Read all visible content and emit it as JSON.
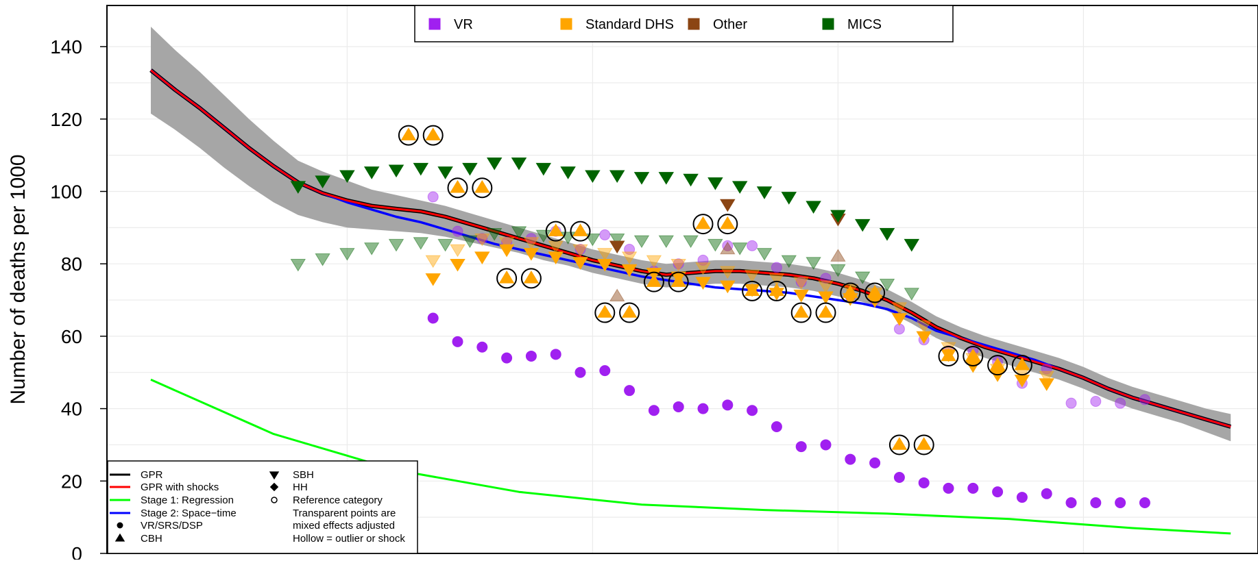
{
  "chart_data": {
    "type": "scatter",
    "title": "",
    "xlabel": "",
    "ylabel": "Number of deaths per 1000",
    "x_range": [
      1968,
      2020
    ],
    "ylim": [
      0,
      150
    ],
    "y_ticks": [
      0,
      20,
      40,
      60,
      80,
      100,
      120,
      140
    ],
    "grid": true,
    "colors": {
      "VR": "#a020f0",
      "Standard DHS": "#ffa500",
      "Other": "#8b4513",
      "MICS": "#006400",
      "GPR": "#000000",
      "GPR with shocks": "#ff0000",
      "Stage 1: Regression": "#00ff00",
      "Stage 2: Space-time": "#0000ff",
      "uncertainty": "#a6a6a6"
    },
    "source_legend": {
      "placement": "top-center",
      "entries": [
        "VR",
        "Standard DHS",
        "Other",
        "MICS"
      ]
    },
    "key_legend": {
      "placement": "bottom-left",
      "lines": [
        "GPR",
        "GPR with shocks",
        "Stage 1: Regression",
        "Stage 2: Space−time"
      ],
      "symbols": [
        "VR/SRS/DSP",
        "CBH",
        "SBH",
        "HH",
        "Reference category"
      ],
      "notes": [
        "Transparent points are",
        "mixed effects adjusted",
        "Hollow = outlier or shock"
      ]
    },
    "lines": {
      "gpr_x": [
        1970,
        1971,
        1972,
        1973,
        1974,
        1975,
        1976,
        1977,
        1978,
        1979,
        1980,
        1981,
        1982,
        1983,
        1984,
        1985,
        1986,
        1987,
        1988,
        1989,
        1990,
        1991,
        1992,
        1993,
        1994,
        1995,
        1996,
        1997,
        1998,
        1999,
        2000,
        2001,
        2002,
        2003,
        2004,
        2005,
        2006,
        2007,
        2008,
        2009,
        2010,
        2011,
        2012,
        2013,
        2014
      ],
      "gpr_y": [
        133.5,
        128,
        123,
        117.5,
        112,
        107,
        102.5,
        99.5,
        97.5,
        96,
        95.2,
        94.5,
        93,
        91,
        89,
        87,
        85,
        83,
        81,
        79.5,
        78,
        77,
        77.5,
        78,
        78,
        77.5,
        77,
        76,
        74.5,
        72.5,
        70,
        66.5,
        62.5,
        59.5,
        57,
        55,
        53,
        51,
        48.5,
        45.5,
        43,
        41,
        39,
        37,
        35
      ],
      "gpr_upper": [
        145.5,
        139,
        133,
        126.5,
        120,
        114,
        108.5,
        105.5,
        103,
        100.5,
        99,
        97.5,
        96,
        94,
        92,
        90,
        88,
        86,
        84,
        82.5,
        81,
        80,
        80.5,
        81,
        81,
        80.5,
        80,
        79,
        77.5,
        75.5,
        73,
        69.5,
        65.5,
        62.5,
        60,
        58,
        56,
        54,
        51.5,
        48.5,
        46,
        44,
        42,
        40,
        38.5
      ],
      "gpr_lower": [
        121.5,
        117,
        112,
        106.5,
        101.5,
        97,
        93.5,
        91.5,
        90,
        89.5,
        89,
        88.5,
        87.5,
        86,
        84.5,
        83,
        81,
        79.5,
        77.5,
        76,
        74.5,
        73.5,
        74,
        74.5,
        74.5,
        74,
        73.5,
        72.5,
        71,
        69.5,
        67,
        63.5,
        59.5,
        56.5,
        54,
        52,
        50,
        48,
        45.5,
        42.5,
        40,
        38,
        36,
        33.5,
        31
      ],
      "stage2_x": [
        1970,
        1971,
        1972,
        1973,
        1974,
        1975,
        1976,
        1977,
        1978,
        1979,
        1980,
        1981,
        1982,
        1983,
        1984,
        1985,
        1986,
        1987,
        1988,
        1989,
        1990,
        1991,
        1992,
        1993,
        1994,
        1995,
        1996,
        1997,
        1998,
        1999,
        2000,
        2001,
        2002,
        2003,
        2004,
        2005,
        2006,
        2007,
        2008,
        2009,
        2010,
        2011,
        2012,
        2013,
        2014
      ],
      "stage2_y": [
        133.5,
        128,
        123,
        117.5,
        112,
        107,
        102.5,
        99.5,
        97,
        95,
        93,
        91.5,
        89.5,
        87.5,
        85.5,
        84,
        82.5,
        81,
        79.5,
        78,
        76.5,
        75.5,
        74.5,
        73.5,
        73,
        72.5,
        72,
        71,
        70,
        69,
        67.5,
        65,
        61.5,
        59.5,
        57.5,
        55.5,
        53.5,
        51,
        48.5,
        45.5,
        43,
        41,
        39,
        37,
        35
      ],
      "stage1_x": [
        1970,
        1975,
        1980,
        1985,
        1990,
        1995,
        2000,
        2005,
        2010,
        2014
      ],
      "stage1_y": [
        48,
        33,
        23,
        17,
        13.5,
        12,
        11,
        9.5,
        7,
        5.5
      ]
    },
    "series": [
      {
        "name": "VR",
        "marker": "circle",
        "alpha": 1,
        "points": [
          [
            1981.5,
            65
          ],
          [
            1982.5,
            58.5
          ],
          [
            1983.5,
            57
          ],
          [
            1984.5,
            54
          ],
          [
            1985.5,
            54.5
          ],
          [
            1986.5,
            55
          ],
          [
            1987.5,
            50
          ],
          [
            1988.5,
            50.5
          ],
          [
            1989.5,
            45
          ],
          [
            1990.5,
            39.5
          ],
          [
            1991.5,
            40.5
          ],
          [
            1992.5,
            40
          ],
          [
            1993.5,
            41
          ],
          [
            1994.5,
            39.5
          ],
          [
            1995.5,
            35
          ],
          [
            1996.5,
            29.5
          ],
          [
            1997.5,
            30
          ],
          [
            1998.5,
            26
          ],
          [
            1999.5,
            25
          ],
          [
            2000.5,
            21
          ],
          [
            2001.5,
            19.5
          ],
          [
            2002.5,
            18
          ],
          [
            2003.5,
            18
          ],
          [
            2004.5,
            17
          ],
          [
            2005.5,
            15.5
          ],
          [
            2006.5,
            16.5
          ],
          [
            2007.5,
            14
          ],
          [
            2008.5,
            14
          ],
          [
            2009.5,
            14
          ],
          [
            2010.5,
            14
          ]
        ]
      },
      {
        "name": "VR",
        "marker": "circle",
        "alpha": 0.45,
        "points": [
          [
            1981.5,
            98.5
          ],
          [
            1982.5,
            89
          ],
          [
            1983.5,
            87
          ],
          [
            1984.5,
            86
          ],
          [
            1985.5,
            87
          ],
          [
            1986.5,
            89
          ],
          [
            1987.5,
            84
          ],
          [
            1988.5,
            88
          ],
          [
            1989.5,
            84
          ],
          [
            1990.5,
            78
          ],
          [
            1991.5,
            80
          ],
          [
            1992.5,
            81
          ],
          [
            1993.5,
            85
          ],
          [
            1994.5,
            85
          ],
          [
            1995.5,
            79
          ],
          [
            1996.5,
            75
          ],
          [
            1997.5,
            76
          ],
          [
            1998.5,
            71
          ],
          [
            1999.5,
            70
          ],
          [
            2000.5,
            62
          ],
          [
            2001.5,
            59
          ],
          [
            2002.5,
            56
          ],
          [
            2003.5,
            56
          ],
          [
            2004.5,
            53
          ],
          [
            2005.5,
            47
          ],
          [
            2006.5,
            51
          ],
          [
            2007.5,
            41.5
          ],
          [
            2008.5,
            42
          ],
          [
            2009.5,
            41.5
          ],
          [
            2010.5,
            42.5
          ]
        ]
      },
      {
        "name": "Standard DHS",
        "marker": "triangle-down",
        "alpha": 1,
        "points": [
          [
            1981.5,
            76
          ],
          [
            1982.5,
            80
          ],
          [
            1983.5,
            82
          ],
          [
            1984.5,
            84
          ],
          [
            1985.5,
            83
          ],
          [
            1986.5,
            82
          ],
          [
            1987.5,
            80.5
          ],
          [
            1988.5,
            80
          ],
          [
            1989.5,
            78.5
          ],
          [
            1990.5,
            77.5
          ],
          [
            1991.5,
            76.5
          ],
          [
            1992.5,
            75
          ],
          [
            1993.5,
            74
          ],
          [
            1994.5,
            73
          ],
          [
            1995.5,
            72
          ],
          [
            1996.5,
            71.5
          ],
          [
            1997.5,
            71
          ],
          [
            1998.5,
            70.5
          ],
          [
            1999.5,
            70
          ],
          [
            2000.5,
            65
          ],
          [
            2001.5,
            60
          ],
          [
            2002.5,
            55
          ],
          [
            2003.5,
            52
          ],
          [
            2004.5,
            49.5
          ],
          [
            2005.5,
            48
          ],
          [
            2006.5,
            47
          ]
        ]
      },
      {
        "name": "Standard DHS",
        "marker": "triangle-down",
        "alpha": 0.45,
        "points": [
          [
            1981.5,
            81
          ],
          [
            1982.5,
            84
          ],
          [
            1983.5,
            87
          ],
          [
            1984.5,
            86
          ],
          [
            1985.5,
            86
          ],
          [
            1986.5,
            85
          ],
          [
            1987.5,
            84
          ],
          [
            1988.5,
            83
          ],
          [
            1989.5,
            82
          ],
          [
            1990.5,
            81
          ],
          [
            1991.5,
            80
          ],
          [
            1992.5,
            79
          ],
          [
            1993.5,
            78
          ],
          [
            1994.5,
            77
          ],
          [
            1995.5,
            76
          ],
          [
            1996.5,
            75
          ],
          [
            1997.5,
            74
          ],
          [
            1998.5,
            73
          ],
          [
            1999.5,
            72
          ],
          [
            2000.5,
            68
          ],
          [
            2001.5,
            63
          ],
          [
            2002.5,
            57
          ],
          [
            2003.5,
            54
          ],
          [
            2004.5,
            51
          ],
          [
            2005.5,
            50
          ],
          [
            2006.5,
            49
          ]
        ]
      },
      {
        "name": "Standard DHS",
        "marker": "triangle-up",
        "alpha": 1,
        "circled": true,
        "points": [
          [
            1980.5,
            115.5
          ],
          [
            1981.5,
            115.5
          ],
          [
            1982.5,
            101
          ],
          [
            1983.5,
            101
          ],
          [
            1984.5,
            76
          ],
          [
            1985.5,
            76
          ],
          [
            1986.5,
            89
          ],
          [
            1987.5,
            89
          ],
          [
            1988.5,
            66.5
          ],
          [
            1989.5,
            66.5
          ],
          [
            1990.5,
            75
          ],
          [
            1991.5,
            75
          ],
          [
            1992.5,
            91
          ],
          [
            1993.5,
            91
          ],
          [
            1994.5,
            72.5
          ],
          [
            1995.5,
            72.5
          ],
          [
            1996.5,
            66.5
          ],
          [
            1997.5,
            66.5
          ],
          [
            1998.5,
            72
          ],
          [
            1999.5,
            72
          ],
          [
            2000.5,
            30
          ],
          [
            2001.5,
            30
          ],
          [
            2002.5,
            54.5
          ],
          [
            2003.5,
            54.5
          ],
          [
            2004.5,
            52
          ],
          [
            2005.5,
            52
          ]
        ]
      },
      {
        "name": "Other",
        "marker": "triangle-down",
        "alpha": 1,
        "points": [
          [
            1989,
            85
          ],
          [
            1993.5,
            96.5
          ],
          [
            1998,
            92.5
          ]
        ]
      },
      {
        "name": "Other",
        "marker": "triangle-up",
        "alpha": 0.45,
        "points": [
          [
            1989,
            71
          ],
          [
            1993.5,
            84
          ],
          [
            1998,
            82
          ]
        ]
      },
      {
        "name": "MICS",
        "marker": "triangle-down",
        "alpha": 1,
        "points": [
          [
            1976,
            101.5
          ],
          [
            1977,
            103
          ],
          [
            1978,
            104.5
          ],
          [
            1979,
            105.5
          ],
          [
            1980,
            106
          ],
          [
            1981,
            106.5
          ],
          [
            1982,
            105.5
          ],
          [
            1983,
            106.5
          ],
          [
            1984,
            108
          ],
          [
            1985,
            108
          ],
          [
            1986,
            106.5
          ],
          [
            1987,
            105.5
          ],
          [
            1988,
            104.5
          ],
          [
            1989,
            104.5
          ],
          [
            1990,
            104
          ],
          [
            1991,
            104
          ],
          [
            1992,
            103.5
          ],
          [
            1993,
            102.5
          ],
          [
            1994,
            101.5
          ],
          [
            1995,
            100
          ],
          [
            1996,
            98.5
          ],
          [
            1997,
            96
          ],
          [
            1998,
            93.5
          ],
          [
            1999,
            91
          ],
          [
            2000,
            88.5
          ],
          [
            2001,
            85.5
          ]
        ]
      },
      {
        "name": "MICS",
        "marker": "triangle-down",
        "alpha": 0.45,
        "points": [
          [
            1976,
            80
          ],
          [
            1977,
            81.5
          ],
          [
            1978,
            83
          ],
          [
            1979,
            84.5
          ],
          [
            1980,
            85.5
          ],
          [
            1981,
            86
          ],
          [
            1982,
            85.5
          ],
          [
            1983,
            86.5
          ],
          [
            1984,
            88.5
          ],
          [
            1985,
            89
          ],
          [
            1986,
            88
          ],
          [
            1987,
            87.5
          ],
          [
            1988,
            87
          ],
          [
            1989,
            87
          ],
          [
            1990,
            86.5
          ],
          [
            1991,
            86.5
          ],
          [
            1992,
            86.5
          ],
          [
            1993,
            85.5
          ],
          [
            1994,
            84.5
          ],
          [
            1995,
            83
          ],
          [
            1996,
            81
          ],
          [
            1997,
            80.5
          ],
          [
            1998,
            78.5
          ],
          [
            1999,
            76.5
          ],
          [
            2000,
            74.5
          ],
          [
            2001,
            72
          ]
        ]
      }
    ]
  }
}
